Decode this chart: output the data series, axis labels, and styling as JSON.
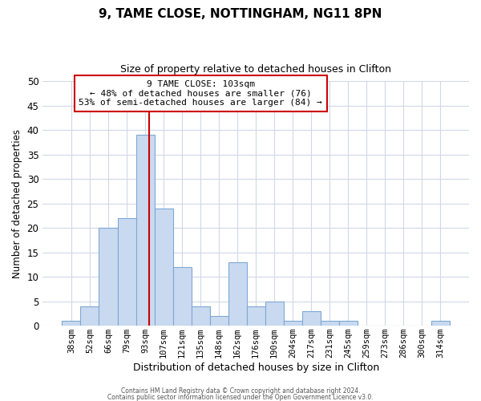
{
  "title": "9, TAME CLOSE, NOTTINGHAM, NG11 8PN",
  "subtitle": "Size of property relative to detached houses in Clifton",
  "xlabel": "Distribution of detached houses by size in Clifton",
  "ylabel": "Number of detached properties",
  "bar_labels": [
    "38sqm",
    "52sqm",
    "66sqm",
    "79sqm",
    "93sqm",
    "107sqm",
    "121sqm",
    "135sqm",
    "148sqm",
    "162sqm",
    "176sqm",
    "190sqm",
    "204sqm",
    "217sqm",
    "231sqm",
    "245sqm",
    "259sqm",
    "273sqm",
    "286sqm",
    "300sqm",
    "314sqm"
  ],
  "bar_values": [
    1,
    4,
    20,
    22,
    39,
    24,
    12,
    4,
    2,
    13,
    4,
    5,
    1,
    3,
    1,
    1,
    0,
    0,
    0,
    0,
    1
  ],
  "bar_color": "#c9d9f0",
  "bar_edge_color": "#7fa8d4",
  "ylim": [
    0,
    50
  ],
  "yticks": [
    0,
    5,
    10,
    15,
    20,
    25,
    30,
    35,
    40,
    45,
    50
  ],
  "vline_color": "#cc0000",
  "annotation_title": "9 TAME CLOSE: 103sqm",
  "annotation_line1": "← 48% of detached houses are smaller (76)",
  "annotation_line2": "53% of semi-detached houses are larger (84) →",
  "annotation_box_color": "#cc0000",
  "footer1": "Contains HM Land Registry data © Crown copyright and database right 2024.",
  "footer2": "Contains public sector information licensed under the Open Government Licence v3.0.",
  "background_color": "#ffffff",
  "grid_color": "#d0d8e8"
}
